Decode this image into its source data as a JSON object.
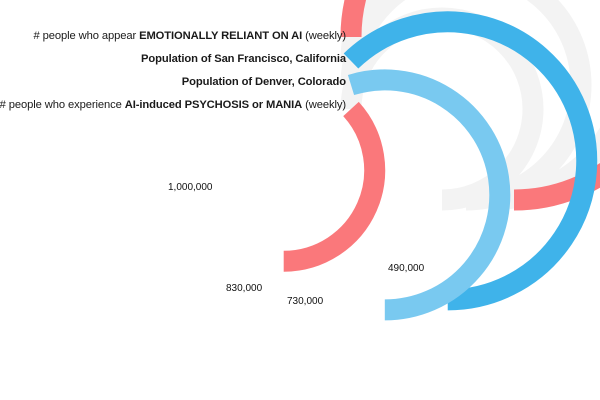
{
  "chart_data": {
    "type": "radial-bar",
    "max_value": 1000000,
    "scale_label": "1,000,000",
    "colors": {
      "track": "#f3f3f3"
    },
    "series": [
      {
        "label_pre": "# people who appear ",
        "label_bold": "EMOTIONALLY RELIANT ON AI",
        "label_post": " (weekly)",
        "value": 1000000,
        "value_label": "",
        "color": "#fa787b"
      },
      {
        "label_pre": "",
        "label_bold": "Population of San Francisco, California",
        "label_post": "",
        "value": 830000,
        "value_label": "830,000",
        "color": "#3fb3ea"
      },
      {
        "label_pre": "",
        "label_bold": "Population of Denver, Colorado",
        "label_post": "",
        "value": 730000,
        "value_label": "730,000",
        "color": "#79c9f0"
      },
      {
        "label_pre": "# people who experience ",
        "label_bold": "AI-induced PSYCHOSIS or MANIA",
        "label_post": " (weekly)",
        "value": 490000,
        "value_label": "490,000",
        "color": "#fa787b"
      }
    ]
  }
}
